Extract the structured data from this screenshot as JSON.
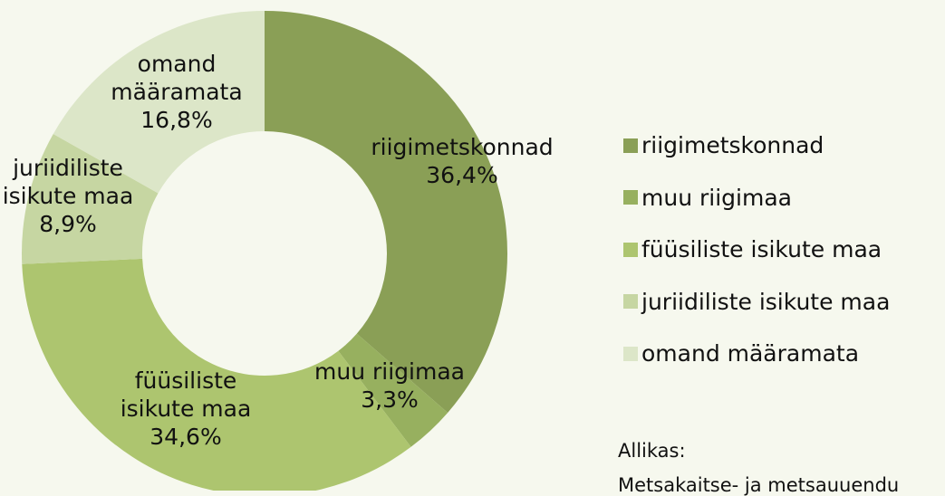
{
  "chart_data": {
    "type": "donut",
    "categories": [
      "riigimetskonnad",
      "muu riigimaa",
      "füüsiliste isikute maa",
      "juriidiliste isikute maa",
      "omand määramata"
    ],
    "values": [
      36.4,
      3.3,
      34.6,
      8.9,
      16.8
    ],
    "value_labels": [
      "36,4%",
      "3,3%",
      "34,6%",
      "8,9%",
      "16,8%"
    ],
    "colors": [
      "#8a9f56",
      "#97b05f",
      "#adc56f",
      "#c6d6a2",
      "#dce6c8"
    ],
    "legend": "right"
  },
  "source_label": "Allikas:",
  "source": "Metsakaitse- ja metsauuendu"
}
